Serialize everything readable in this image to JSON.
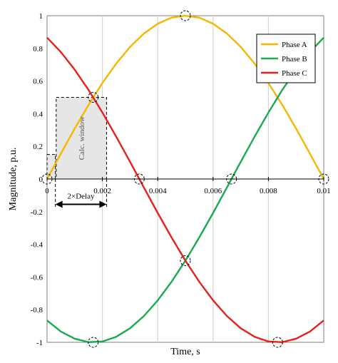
{
  "chart_data": {
    "type": "line",
    "xlabel": "Time, s",
    "ylabel": "Magnitude, p.u.",
    "xlim": [
      0,
      0.01
    ],
    "ylim": [
      -1,
      1
    ],
    "x_ticks": [
      0,
      0.002,
      0.004,
      0.006,
      0.008,
      0.01
    ],
    "x_tick_labels": [
      "0",
      "0.002",
      "0.004",
      "0.006",
      "0.008",
      "0.01"
    ],
    "y_ticks": [
      -1,
      -0.8,
      -0.6,
      -0.4,
      -0.2,
      0,
      0.2,
      0.4,
      0.6,
      0.8,
      1
    ],
    "y_tick_labels": [
      "-1",
      "-0.8",
      "-0.6",
      "-0.4",
      "-0.2",
      "0",
      "0.2",
      "0.4",
      "0.6",
      "0.8",
      "1"
    ],
    "grid": "vertical",
    "legend_position": "top-right",
    "series": [
      {
        "name": "Phase A",
        "color": "#f5b800",
        "x": [
          0,
          0.0005,
          0.001,
          0.0015,
          0.002,
          0.0025,
          0.003,
          0.0035,
          0.004,
          0.0045,
          0.005,
          0.0055,
          0.006,
          0.0065,
          0.007,
          0.0075,
          0.008,
          0.0085,
          0.009,
          0.0095,
          0.01
        ],
        "y": [
          0,
          0.156,
          0.309,
          0.454,
          0.588,
          0.707,
          0.809,
          0.891,
          0.951,
          0.988,
          1,
          0.988,
          0.951,
          0.891,
          0.809,
          0.707,
          0.588,
          0.454,
          0.309,
          0.156,
          0
        ]
      },
      {
        "name": "Phase B",
        "color": "#1aaa50",
        "x": [
          0,
          0.0005,
          0.001,
          0.0015,
          0.002,
          0.0025,
          0.003,
          0.0035,
          0.004,
          0.0045,
          0.005,
          0.0055,
          0.006,
          0.0065,
          0.007,
          0.0075,
          0.008,
          0.0085,
          0.009,
          0.0095,
          0.01
        ],
        "y": [
          -0.866,
          -0.934,
          -0.978,
          -0.999,
          -0.995,
          -0.966,
          -0.914,
          -0.839,
          -0.743,
          -0.629,
          -0.5,
          -0.358,
          -0.208,
          -0.052,
          0.105,
          0.259,
          0.407,
          0.545,
          0.669,
          0.777,
          0.866
        ]
      },
      {
        "name": "Phase C",
        "color": "#e8201c",
        "x": [
          0,
          0.0005,
          0.001,
          0.0015,
          0.002,
          0.0025,
          0.003,
          0.0035,
          0.004,
          0.0045,
          0.005,
          0.0055,
          0.006,
          0.0065,
          0.007,
          0.0075,
          0.008,
          0.0085,
          0.009,
          0.0095,
          0.01
        ],
        "y": [
          0.866,
          0.777,
          0.669,
          0.545,
          0.407,
          0.259,
          0.105,
          -0.052,
          -0.208,
          -0.358,
          -0.5,
          -0.629,
          -0.743,
          -0.839,
          -0.914,
          -0.966,
          -0.995,
          -0.999,
          -0.978,
          -0.934,
          -0.866
        ]
      }
    ],
    "markers": [
      {
        "x": 0,
        "y": 0
      },
      {
        "x": 0.001667,
        "y": 0.5
      },
      {
        "x": 0.001667,
        "y": -1
      },
      {
        "x": 0.003333,
        "y": 0
      },
      {
        "x": 0.005,
        "y": 1
      },
      {
        "x": 0.005,
        "y": -0.5
      },
      {
        "x": 0.006667,
        "y": 0
      },
      {
        "x": 0.008333,
        "y": -1
      },
      {
        "x": 0.01,
        "y": 0
      }
    ],
    "annotations": {
      "window_label": "Calc. window",
      "window_x": [
        0.00033,
        0.00215
      ],
      "window_y_top": 0.5,
      "small_window_x": [
        0,
        0.0003
      ],
      "small_window_y_top": 0.15,
      "delay_label": "2×Delay",
      "delay_x": [
        0.0003,
        0.00215
      ],
      "delay_y": -0.155
    }
  }
}
